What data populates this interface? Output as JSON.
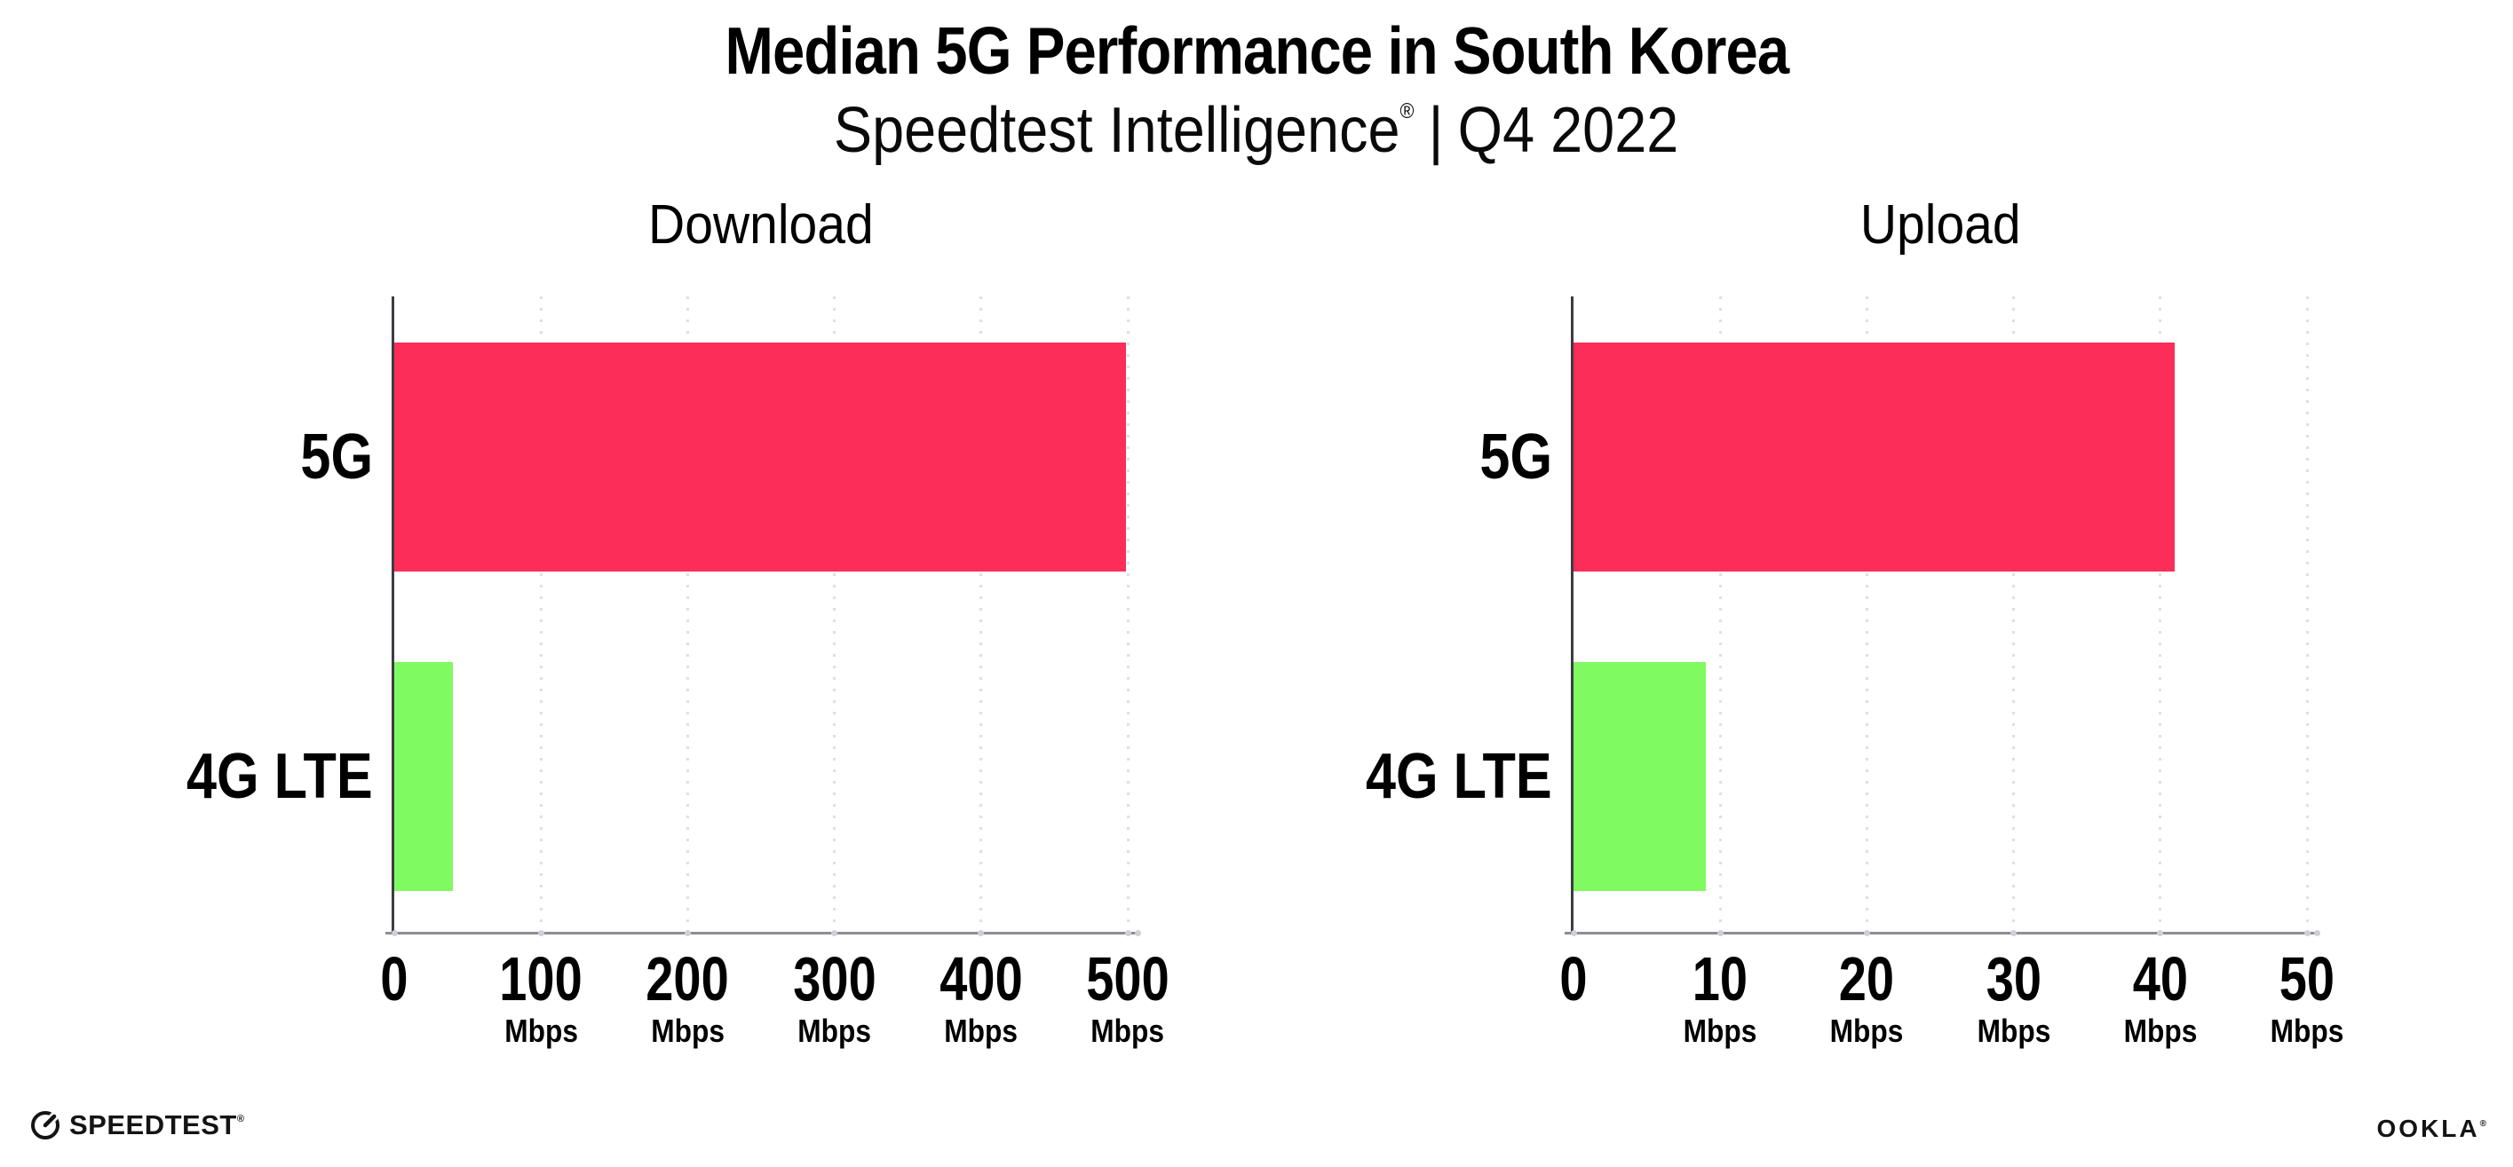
{
  "header": {
    "title": "Median 5G Performance in South Korea",
    "subtitle_brand": "Speedtest Intelligence",
    "subtitle_reg": "®",
    "subtitle_sep": "|",
    "subtitle_period": "Q4 2022"
  },
  "colors": {
    "bar_5g": "#fc2d58",
    "bar_4g_lte": "#80fa61",
    "gridline": "#dedee6",
    "y_axis": "#3c3c42",
    "x_axis": "#8d8d95",
    "text": "#000000"
  },
  "chart_data": [
    {
      "type": "bar",
      "orientation": "horizontal",
      "title": "Download",
      "categories": [
        "5G",
        "4G LTE"
      ],
      "values": [
        499,
        40
      ],
      "unit": "Mbps",
      "xlim": [
        0,
        500
      ],
      "xticks": [
        0,
        100,
        200,
        300,
        400,
        500
      ],
      "xtick_unit": "Mbps",
      "bar_colors": [
        "#fc2d58",
        "#80fa61"
      ],
      "grid": "dotted-vertical",
      "legend": "none"
    },
    {
      "type": "bar",
      "orientation": "horizontal",
      "title": "Upload",
      "categories": [
        "5G",
        "4G LTE"
      ],
      "values": [
        41,
        9
      ],
      "unit": "Mbps",
      "xlim": [
        0,
        50
      ],
      "xticks": [
        0,
        10,
        20,
        30,
        40,
        50
      ],
      "xtick_unit": "Mbps",
      "bar_colors": [
        "#fc2d58",
        "#80fa61"
      ],
      "grid": "dotted-vertical",
      "legend": "none"
    }
  ],
  "footer": {
    "speedtest_wordmark": "SPEEDTEST",
    "speedtest_reg": "®",
    "ookla_wordmark": "OOKLA",
    "ookla_reg": "®"
  }
}
